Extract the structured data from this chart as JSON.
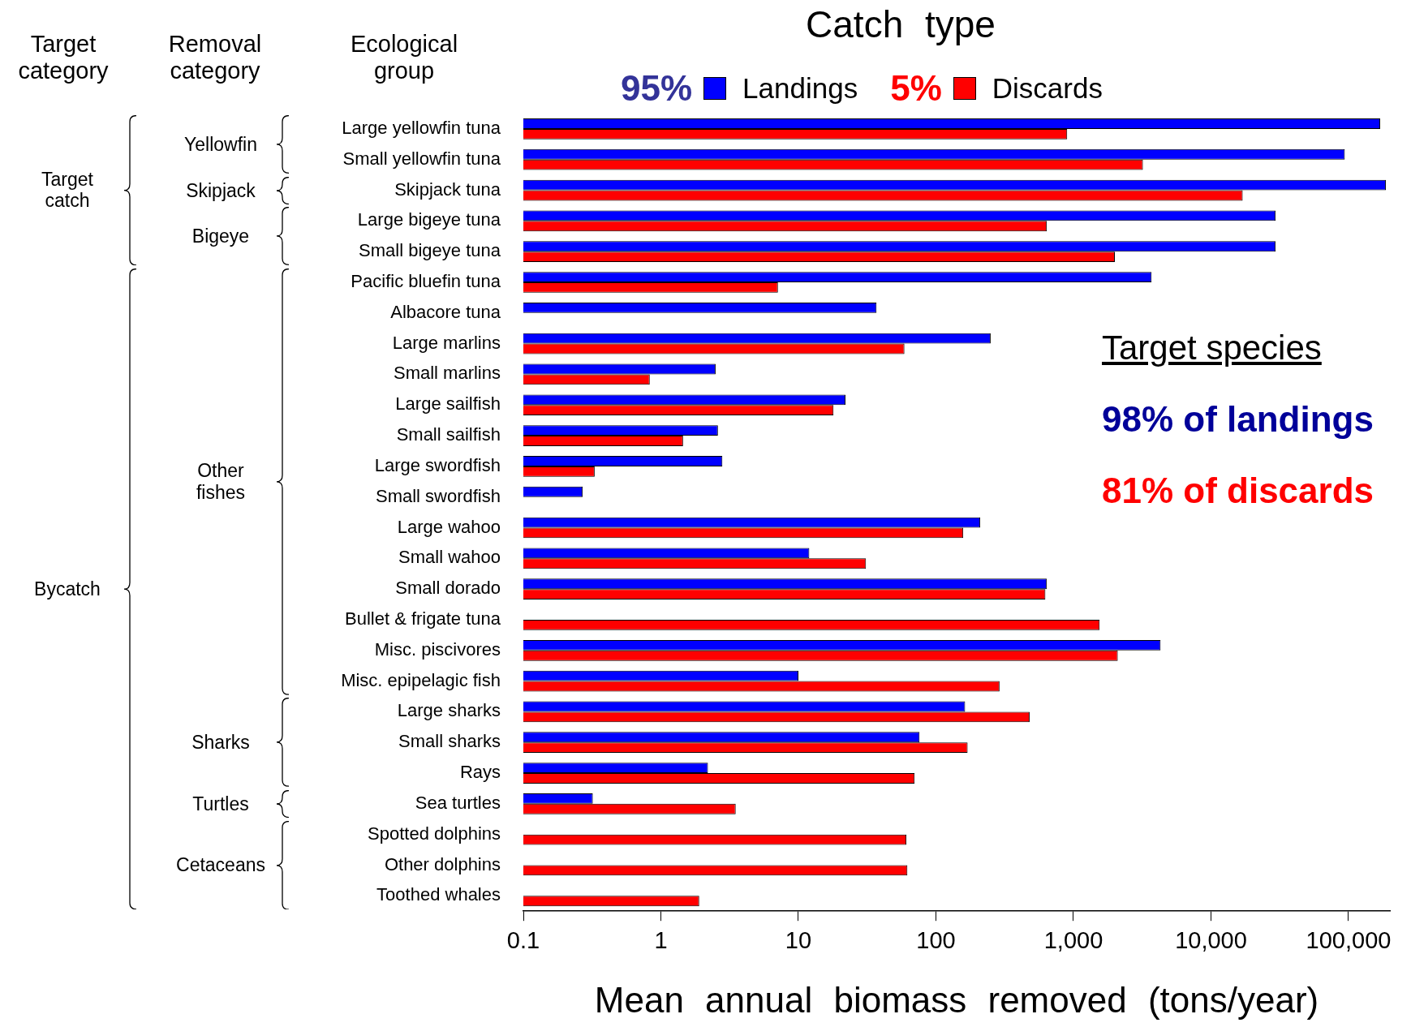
{
  "chart_data": {
    "type": "bar",
    "orientation": "horizontal",
    "title": "Catch type",
    "xlabel": "Mean annual biomass removed (tons/year)",
    "categories": [
      "Large yellowfin tuna",
      "Small yellowfin tuna",
      "Skipjack tuna",
      "Large bigeye tuna",
      "Small bigeye tuna",
      "Pacific bluefin tuna",
      "Albacore tuna",
      "Large marlins",
      "Small marlins",
      "Large sailfish",
      "Small sailfish",
      "Large swordfish",
      "Small swordfish",
      "Large wahoo",
      "Small wahoo",
      "Small dorado",
      "Bullet & frigate tuna",
      "Misc. piscivores",
      "Misc. epipelagic fish",
      "Large sharks",
      "Small sharks",
      "Rays",
      "Sea turtles",
      "Spotted dolphins",
      "Other dolphins",
      "Toothed whales"
    ],
    "series": [
      {
        "name": "Landings",
        "color": "#0000ff",
        "values": [
          170000,
          94000,
          187000,
          29500,
          29500,
          3700,
          37,
          250,
          2.5,
          22,
          2.6,
          2.8,
          0.27,
          210,
          12,
          640,
          null,
          4300,
          10,
          163,
          76,
          2.2,
          0.32,
          null,
          null,
          null
        ]
      },
      {
        "name": "Discards",
        "color": "#ff0000",
        "values": [
          900,
          3200,
          17000,
          640,
          2000,
          7.1,
          null,
          59,
          0.83,
          18,
          1.45,
          0.33,
          null,
          158,
          31,
          625,
          1550,
          2100,
          290,
          480,
          170,
          70,
          3.5,
          61,
          62,
          1.9
        ]
      }
    ],
    "xlim": [
      0.1,
      200000
    ],
    "xticks": [
      0.1,
      1,
      10,
      100,
      {
        "value": 1000,
        "label": "1,000"
      },
      {
        "value": 10000,
        "label": "10,000"
      },
      {
        "value": 100000,
        "label": "100,000"
      }
    ],
    "log": "x",
    "grid": false,
    "legend": "top",
    "annotations": [
      "Target category",
      "Removal category",
      "Ecological group",
      "Target catch",
      "Bycatch",
      "Yellowfin",
      "Skipjack",
      "Bigeye",
      "Other fishes",
      "Sharks",
      "Turtles",
      "Cetaceans",
      "95%",
      "5%",
      "Target species",
      "98% of landings",
      "81% of discards"
    ]
  }
}
